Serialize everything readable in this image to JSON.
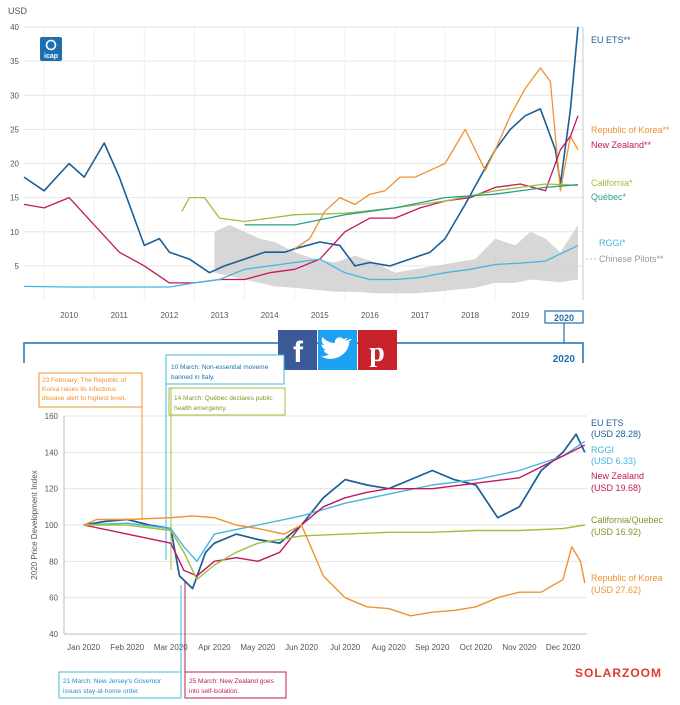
{
  "colors": {
    "eu_ets": "#1b5e96",
    "korea": "#f0922e",
    "new_zealand": "#c2185b",
    "california": "#9fbf3b",
    "quebec": "#2c9c8f",
    "rggi": "#45b5e0",
    "chinese_pilots": "#c9c9c9",
    "frame_blue": "#1e6fb0",
    "facebook": "#3b5998",
    "twitter": "#1da1f2",
    "pinterest": "#c8232c"
  },
  "share": {
    "icons": [
      "facebook-icon",
      "twitter-icon",
      "pinterest-icon"
    ],
    "facebook": "f",
    "twitter": "t",
    "pinterest": "p"
  },
  "logo": {
    "text": "icap"
  },
  "watermark": "SOLARZOOM",
  "top_chart": {
    "unit_label": "USD",
    "year_box": "2020",
    "connector_label": "2020"
  },
  "bottom_chart": {
    "ylabel": "2020 Price Development Index",
    "annotations": {
      "korea_alert": [
        "23 February: The Republic of",
        "Korea raises its infectious",
        "disease alert to highest level."
      ],
      "italy": [
        "10 March: Non-essential moveme",
        "banned in Italy."
      ],
      "quebec_emergency": [
        "14 March: Québec declares public",
        "health emergency."
      ],
      "new_jersey": [
        "21 March: New Jersey's Governor",
        "issues stay-at-home order."
      ],
      "new_zealand_isolation": [
        "25 March: New Zealand goes",
        "into self-isolation."
      ]
    }
  },
  "chart_data": [
    {
      "type": "line",
      "ylabel": "USD",
      "ylim": [
        0,
        40
      ],
      "yticks": [
        5,
        10,
        15,
        20,
        25,
        30,
        35,
        40
      ],
      "xlim": [
        2009.6,
        2020.75
      ],
      "xticks": [
        "2010",
        "2011",
        "2012",
        "2013",
        "2014",
        "2015",
        "2016",
        "2017",
        "2018",
        "2019"
      ],
      "grid": true,
      "legend_placement": "right",
      "series": [
        {
          "name": "EU ETS**",
          "color_key": "eu_ets",
          "x": [
            2009.6,
            2010.0,
            2010.5,
            2010.8,
            2011.2,
            2011.5,
            2011.8,
            2012.0,
            2012.3,
            2012.5,
            2012.9,
            2013.3,
            2013.6,
            2014.0,
            2014.4,
            2014.8,
            2015.0,
            2015.5,
            2015.9,
            2016.2,
            2016.5,
            2016.9,
            2017.3,
            2017.7,
            2018.0,
            2018.4,
            2018.7,
            2019.0,
            2019.3,
            2019.6,
            2019.9,
            2020.2,
            2020.3,
            2020.5,
            2020.65
          ],
          "y": [
            18,
            16,
            20,
            18,
            23,
            18,
            12,
            8,
            9,
            7,
            6,
            4,
            5,
            6,
            7,
            7,
            7.5,
            8.5,
            8,
            5,
            5.5,
            5,
            6,
            7,
            9,
            14,
            18,
            22,
            25,
            27,
            28,
            22,
            17,
            28,
            40
          ]
        },
        {
          "name": "Republic of Korea**",
          "color_key": "korea",
          "x": [
            2015.0,
            2015.3,
            2015.6,
            2015.9,
            2016.2,
            2016.5,
            2016.8,
            2017.1,
            2017.4,
            2017.7,
            2018.0,
            2018.4,
            2018.8,
            2019.0,
            2019.3,
            2019.6,
            2019.9,
            2020.1,
            2020.3,
            2020.5,
            2020.65
          ],
          "y": [
            7.5,
            9,
            13,
            15,
            14,
            15.5,
            16,
            18,
            18,
            19,
            20,
            25,
            19,
            22,
            27,
            31,
            34,
            32,
            16,
            24,
            22
          ]
        },
        {
          "name": "New Zealand**",
          "color_key": "new_zealand",
          "x": [
            2009.6,
            2010.0,
            2010.5,
            2011.0,
            2011.5,
            2012.0,
            2012.5,
            2013.0,
            2013.5,
            2014.0,
            2014.5,
            2015.0,
            2015.5,
            2016.0,
            2016.5,
            2017.0,
            2017.5,
            2018.0,
            2018.5,
            2019.0,
            2019.5,
            2020.0,
            2020.3,
            2020.5,
            2020.65
          ],
          "y": [
            14,
            13.5,
            15,
            11,
            7,
            5,
            2.5,
            2.5,
            3,
            3,
            4,
            4.5,
            6,
            10,
            12,
            12,
            13.5,
            14.5,
            15,
            16.5,
            17,
            16,
            22,
            24,
            27
          ]
        },
        {
          "name": "California*",
          "color_key": "california",
          "x": [
            2012.75,
            2012.9,
            2013.2,
            2013.5,
            2014.0,
            2015.0,
            2016.0,
            2017.0,
            2018.0,
            2019.0,
            2020.0,
            2020.65
          ],
          "y": [
            13,
            15,
            15,
            12,
            11.5,
            12.5,
            12.7,
            13.5,
            14.5,
            16,
            17,
            16.8
          ]
        },
        {
          "name": "Québec*",
          "color_key": "quebec",
          "x": [
            2014.0,
            2015.0,
            2016.0,
            2017.0,
            2018.0,
            2019.0,
            2020.0,
            2020.65
          ],
          "y": [
            11,
            11,
            12.5,
            13.5,
            15,
            15.5,
            16.5,
            16.9
          ]
        },
        {
          "name": "RGGI*",
          "color_key": "rggi",
          "x": [
            2009.6,
            2010.5,
            2011.5,
            2012.5,
            2013.0,
            2013.5,
            2014.0,
            2014.5,
            2015.0,
            2015.5,
            2016.0,
            2016.5,
            2017.0,
            2017.5,
            2018.0,
            2018.5,
            2019.0,
            2019.5,
            2020.0,
            2020.65
          ],
          "y": [
            2,
            1.9,
            1.9,
            1.9,
            2.5,
            3,
            4.5,
            5,
            5.5,
            6,
            4,
            3,
            3,
            3.3,
            4,
            4.5,
            5.2,
            5.4,
            5.7,
            8
          ]
        },
        {
          "name": "Chinese Pilots**",
          "color_key": "chinese_pilots",
          "kind": "band",
          "x": [
            2013.4,
            2013.7,
            2014.0,
            2014.3,
            2014.6,
            2015.0,
            2015.4,
            2015.8,
            2016.2,
            2016.6,
            2017.0,
            2017.4,
            2017.8,
            2018.2,
            2018.6,
            2019.0,
            2019.4,
            2019.7,
            2020.0,
            2020.3,
            2020.65
          ],
          "high": [
            10,
            11,
            10,
            9,
            8.5,
            7,
            6,
            5.5,
            6.5,
            5.5,
            4,
            4.5,
            5,
            5.5,
            6,
            9,
            8,
            10,
            9,
            7,
            11
          ],
          "low": [
            4,
            3.5,
            3,
            2.5,
            2,
            1.8,
            1.5,
            1.2,
            1.2,
            1,
            1,
            1,
            1.2,
            1.5,
            1.8,
            2.5,
            2.5,
            3,
            2.8,
            2.6,
            3
          ]
        }
      ]
    },
    {
      "type": "line",
      "ylabel": "2020 Price Development Index",
      "ylim": [
        40,
        160
      ],
      "yticks": [
        40,
        60,
        80,
        100,
        120,
        140,
        160
      ],
      "categories": [
        "Jan 2020",
        "Feb 2020",
        "Mar 2020",
        "Apr 2020",
        "May 2020",
        "Jun 2020",
        "Jul 2020",
        "Aug 2020",
        "Sep 2020",
        "Oct 2020",
        "Nov 2020",
        "Dec 2020"
      ],
      "grid": true,
      "legend_placement": "right",
      "series": [
        {
          "name": "EU ETS",
          "value_label": "(USD 28.28)",
          "color_key": "eu_ets",
          "x": [
            0,
            0.5,
            1.0,
            1.5,
            2.0,
            2.2,
            2.5,
            2.8,
            3.0,
            3.5,
            4.0,
            4.5,
            5.0,
            5.5,
            6.0,
            6.5,
            7.0,
            7.5,
            8.0,
            8.5,
            9.0,
            9.5,
            10.0,
            10.5,
            11.0,
            11.3,
            11.5
          ],
          "y": [
            100,
            102,
            103,
            100,
            98,
            72,
            65,
            85,
            90,
            95,
            92,
            90,
            100,
            115,
            125,
            122,
            120,
            125,
            130,
            125,
            122,
            104,
            110,
            130,
            140,
            150,
            140
          ]
        },
        {
          "name": "RGGI",
          "value_label": "(USD 6.33)",
          "color_key": "rggi",
          "x": [
            0,
            1.0,
            2.0,
            2.3,
            2.6,
            3.0,
            4.0,
            5.0,
            6.0,
            7.0,
            8.0,
            9.0,
            10.0,
            11.0,
            11.5
          ],
          "y": [
            100,
            101,
            98,
            88,
            80,
            95,
            100,
            105,
            112,
            117,
            122,
            125,
            130,
            138,
            146
          ]
        },
        {
          "name": "New Zealand",
          "value_label": "(USD 19.68)",
          "color_key": "new_zealand",
          "x": [
            0,
            1.0,
            2.0,
            2.3,
            2.6,
            3.0,
            3.5,
            4.0,
            4.5,
            5.0,
            5.5,
            6.0,
            6.5,
            7.0,
            8.0,
            9.0,
            10.0,
            11.0,
            11.5
          ],
          "y": [
            100,
            95,
            90,
            75,
            72,
            80,
            82,
            80,
            85,
            100,
            110,
            115,
            118,
            120,
            120,
            123,
            126,
            138,
            144
          ]
        },
        {
          "name": "California/Quebec",
          "value_label": "(USD 16.92)",
          "color_key": "california",
          "x": [
            0,
            1.0,
            2.0,
            2.3,
            2.6,
            3.0,
            3.5,
            4.0,
            5.0,
            6.0,
            7.0,
            8.0,
            9.0,
            10.0,
            11.0,
            11.5
          ],
          "y": [
            100,
            100,
            97,
            85,
            70,
            78,
            85,
            90,
            94,
            95,
            96,
            96,
            97,
            97,
            98,
            100
          ]
        },
        {
          "name": "Republic of Korea",
          "value_label": "(USD 27.62)",
          "color_key": "korea",
          "x": [
            0,
            0.3,
            1.0,
            2.0,
            2.5,
            3.0,
            3.5,
            4.0,
            4.6,
            5.0,
            5.5,
            6.0,
            6.5,
            7.0,
            7.5,
            8.0,
            8.5,
            9.0,
            9.5,
            10.0,
            10.5,
            11.0,
            11.2,
            11.4,
            11.5
          ],
          "y": [
            100,
            103,
            103,
            104,
            105,
            104,
            100,
            98,
            95,
            100,
            72,
            60,
            55,
            54,
            50,
            52,
            53,
            55,
            60,
            63,
            63,
            70,
            88,
            80,
            68
          ]
        }
      ]
    }
  ]
}
